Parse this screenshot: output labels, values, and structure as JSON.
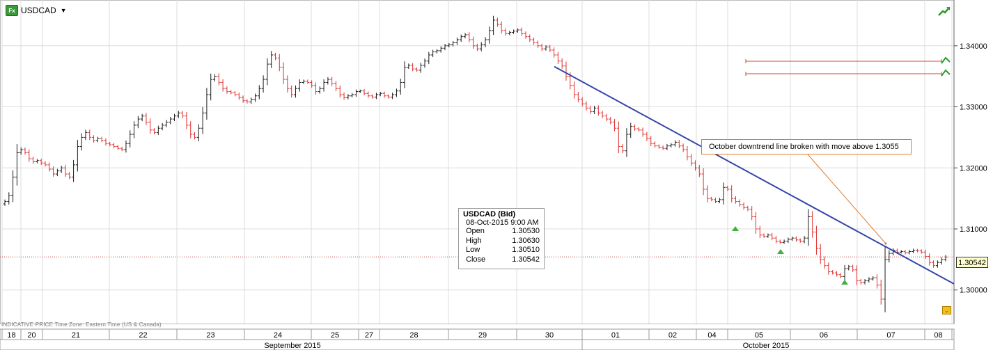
{
  "header": {
    "icon_label": "Fx",
    "symbol": "USDCAD"
  },
  "info_box": {
    "title": "USDCAD (Bid)",
    "datetime": "08-Oct-2015 9:00 AM",
    "rows": [
      {
        "label": "Open",
        "value": "1.30530"
      },
      {
        "label": "High",
        "value": "1.30630"
      },
      {
        "label": "Low",
        "value": "1.30510"
      },
      {
        "label": "Close",
        "value": "1.30542"
      }
    ]
  },
  "annotation": {
    "text": "October downtrend line broken with move above 1.3055"
  },
  "footnote": "INDICATIVE PRICE   Time Zone: Eastern Time (US & Canada)",
  "current_price_label": "1.30542",
  "colors": {
    "up_bar": "#1a1a1a",
    "down_bar": "#e03030",
    "trendline": "#3545a8",
    "annotation": "#e07a2a",
    "alert_line": "#d84040",
    "grid": "#dcdcdc"
  },
  "chart_data": {
    "type": "line",
    "subtype": "ohlc-bars",
    "title": "USDCAD",
    "y_axis_position": "right",
    "ylim": [
      1.2945,
      1.3475
    ],
    "y_ticks": [
      "1.30000",
      "1.31000",
      "1.32000",
      "1.33000",
      "1.34000"
    ],
    "day_labels": [
      "18",
      "20",
      "21",
      "22",
      "23",
      "24",
      "25",
      "27",
      "28",
      "29",
      "30",
      "01",
      "02",
      "04",
      "05",
      "06",
      "07",
      "08"
    ],
    "month_labels": [
      "September 2015",
      "October 2015"
    ],
    "grid": true,
    "series": [
      {
        "values": [
          1.3145,
          1.3155,
          1.3185,
          1.3225,
          1.323,
          1.3225,
          1.3215,
          1.321,
          1.3212,
          1.3208,
          1.3205,
          1.3198,
          1.319,
          1.3195,
          1.32,
          1.319,
          1.3185,
          1.3205,
          1.3235,
          1.325,
          1.3258,
          1.325,
          1.3245,
          1.3248,
          1.3245,
          1.324,
          1.3238,
          1.3235,
          1.3232,
          1.323,
          1.324,
          1.3255,
          1.327,
          1.328,
          1.3285,
          1.3275,
          1.3262,
          1.3258,
          1.3265,
          1.327,
          1.3275,
          1.328,
          1.3285,
          1.329,
          1.3285,
          1.327,
          1.3255,
          1.325,
          1.3265,
          1.329,
          1.332,
          1.3345,
          1.335,
          1.334,
          1.333,
          1.3325,
          1.3323,
          1.332,
          1.3315,
          1.331,
          1.3308,
          1.3312,
          1.3318,
          1.333,
          1.3345,
          1.337,
          1.3385,
          1.338,
          1.3365,
          1.3345,
          1.333,
          1.332,
          1.333,
          1.334,
          1.3342,
          1.334,
          1.3335,
          1.3325,
          1.333,
          1.334,
          1.3345,
          1.3338,
          1.333,
          1.332,
          1.3315,
          1.3318,
          1.332,
          1.3325,
          1.3326,
          1.3322,
          1.3318,
          1.3316,
          1.332,
          1.3322,
          1.3318,
          1.3316,
          1.332,
          1.3326,
          1.334,
          1.3365,
          1.3368,
          1.3362,
          1.336,
          1.3368,
          1.3375,
          1.3385,
          1.339,
          1.3392,
          1.3396,
          1.34,
          1.3402,
          1.3405,
          1.341,
          1.3415,
          1.3418,
          1.341,
          1.34,
          1.3395,
          1.3402,
          1.341,
          1.3425,
          1.3442,
          1.3435,
          1.3425,
          1.342,
          1.3422,
          1.3424,
          1.3426,
          1.342,
          1.3415,
          1.341,
          1.3405,
          1.34,
          1.3395,
          1.3398,
          1.3393,
          1.3385,
          1.3375,
          1.3367,
          1.335,
          1.3335,
          1.332,
          1.3312,
          1.3305,
          1.3298,
          1.3292,
          1.3298,
          1.329,
          1.3285,
          1.328,
          1.3275,
          1.3265,
          1.3235,
          1.3228,
          1.3255,
          1.3268,
          1.3264,
          1.3262,
          1.3255,
          1.3248,
          1.324,
          1.3236,
          1.3234,
          1.3232,
          1.3236,
          1.3238,
          1.3242,
          1.3236,
          1.323,
          1.3218,
          1.3208,
          1.32,
          1.319,
          1.3165,
          1.315,
          1.3148,
          1.3145,
          1.3148,
          1.3168,
          1.3165,
          1.315,
          1.3145,
          1.314,
          1.3135,
          1.3132,
          1.312,
          1.31,
          1.309,
          1.3088,
          1.309,
          1.3085,
          1.308,
          1.3078,
          1.308,
          1.3083,
          1.3085,
          1.3082,
          1.308,
          1.3085,
          1.312,
          1.3095,
          1.3068,
          1.305,
          1.304,
          1.303,
          1.3028,
          1.3025,
          1.3022,
          1.3035,
          1.3038,
          1.3033,
          1.3015,
          1.3012,
          1.3015,
          1.3018,
          1.302,
          1.3008,
          1.2985,
          1.305,
          1.306,
          1.3065,
          1.3062,
          1.3063,
          1.3061,
          1.3063,
          1.3065,
          1.3064,
          1.3062,
          1.3055,
          1.3045,
          1.304,
          1.3045,
          1.305,
          1.3054
        ]
      }
    ],
    "annotations": [
      {
        "text": "October downtrend line broken with move above 1.3055"
      }
    ],
    "current_price": 1.30542
  }
}
